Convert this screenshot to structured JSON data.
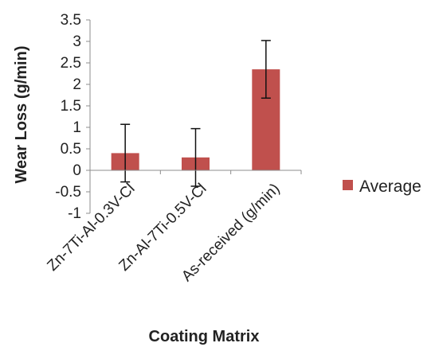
{
  "chart_data": {
    "type": "bar",
    "title": "",
    "xlabel": "Coating Matrix",
    "ylabel": "Wear Loss (g/min)",
    "categories": [
      "Zn-7Ti-Al-0.3V-Cl",
      "Zn-Al-7Ti-0.5V-Cl",
      "As-received (g/min)"
    ],
    "series": [
      {
        "name": "Average",
        "values": [
          0.4,
          0.3,
          2.35
        ],
        "error": [
          0.67,
          0.67,
          0.67
        ],
        "color": "#c0504d"
      }
    ],
    "ylim": [
      -1,
      3.5
    ],
    "yticks": [
      "3.5",
      "3",
      "2.5",
      "2",
      "1.5",
      "1",
      "0.5",
      "0",
      "-0.5",
      "-1"
    ],
    "grid": false,
    "legend": "right"
  }
}
